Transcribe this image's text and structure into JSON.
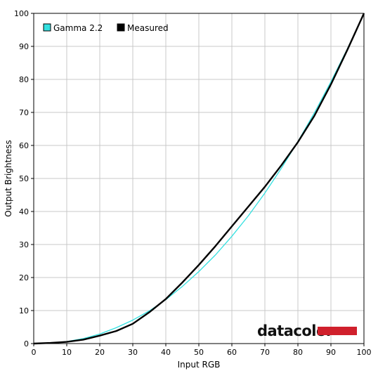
{
  "chart_data": {
    "type": "line",
    "title": "",
    "xlabel": "Input RGB",
    "ylabel": "Output Brightness",
    "xlim": [
      0,
      100
    ],
    "ylim": [
      0,
      100
    ],
    "xticks": [
      0,
      10,
      20,
      30,
      40,
      50,
      60,
      70,
      80,
      90,
      100
    ],
    "yticks": [
      0,
      10,
      20,
      30,
      40,
      50,
      60,
      70,
      80,
      90,
      100
    ],
    "grid": true,
    "legend_position": "top-left",
    "series": [
      {
        "name": "Gamma 2.2",
        "color": "#33e0e0",
        "x": [
          0,
          5,
          10,
          15,
          20,
          25,
          30,
          35,
          40,
          45,
          50,
          55,
          60,
          65,
          70,
          75,
          80,
          85,
          90,
          95,
          100
        ],
        "y": [
          0,
          0.1,
          0.6,
          1.5,
          2.9,
          4.8,
          7.1,
          9.9,
          13.3,
          17.3,
          21.8,
          26.8,
          32.5,
          38.7,
          45.6,
          53.1,
          61.2,
          69.9,
          79.3,
          89.3,
          100
        ]
      },
      {
        "name": "Measured",
        "color": "#000000",
        "x": [
          0,
          5,
          10,
          15,
          20,
          25,
          30,
          35,
          40,
          45,
          50,
          55,
          60,
          65,
          70,
          75,
          80,
          85,
          90,
          95,
          100
        ],
        "y": [
          0,
          0.2,
          0.5,
          1.2,
          2.4,
          3.8,
          6.0,
          9.5,
          13.5,
          18.5,
          23.8,
          29.5,
          35.5,
          41.5,
          47.5,
          54.0,
          61.0,
          69.0,
          78.5,
          89.0,
          100
        ]
      }
    ]
  },
  "watermark": {
    "text": "datacolor",
    "bar_color": "#d0202c"
  },
  "colors": {
    "grid": "#c8c8c8",
    "axis": "#000000"
  }
}
